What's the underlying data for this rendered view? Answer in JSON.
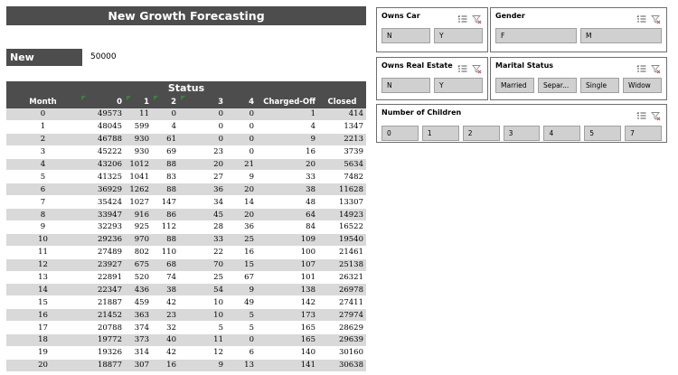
{
  "title": "New Growth Forecasting",
  "new_accounts": {
    "label": "New Accounts",
    "value": "50000"
  },
  "status_label": "Status",
  "columns": [
    "Month",
    "0",
    "1",
    "2",
    "3",
    "4",
    "Charged-Off",
    "Closed"
  ],
  "rows": [
    [
      "0",
      "49573",
      "11",
      "0",
      "0",
      "0",
      "1",
      "414"
    ],
    [
      "1",
      "48045",
      "599",
      "4",
      "0",
      "0",
      "4",
      "1347"
    ],
    [
      "2",
      "46788",
      "930",
      "61",
      "0",
      "0",
      "9",
      "2213"
    ],
    [
      "3",
      "45222",
      "930",
      "69",
      "23",
      "0",
      "16",
      "3739"
    ],
    [
      "4",
      "43206",
      "1012",
      "88",
      "20",
      "21",
      "20",
      "5634"
    ],
    [
      "5",
      "41325",
      "1041",
      "83",
      "27",
      "9",
      "33",
      "7482"
    ],
    [
      "6",
      "36929",
      "1262",
      "88",
      "36",
      "20",
      "38",
      "11628"
    ],
    [
      "7",
      "35424",
      "1027",
      "147",
      "34",
      "14",
      "48",
      "13307"
    ],
    [
      "8",
      "33947",
      "916",
      "86",
      "45",
      "20",
      "64",
      "14923"
    ],
    [
      "9",
      "32293",
      "925",
      "112",
      "28",
      "36",
      "84",
      "16522"
    ],
    [
      "10",
      "29236",
      "970",
      "88",
      "33",
      "25",
      "109",
      "19540"
    ],
    [
      "11",
      "27489",
      "802",
      "110",
      "22",
      "16",
      "100",
      "21461"
    ],
    [
      "12",
      "23927",
      "675",
      "68",
      "70",
      "15",
      "107",
      "25138"
    ],
    [
      "13",
      "22891",
      "520",
      "74",
      "25",
      "67",
      "101",
      "26321"
    ],
    [
      "14",
      "22347",
      "436",
      "38",
      "54",
      "9",
      "138",
      "26978"
    ],
    [
      "15",
      "21887",
      "459",
      "42",
      "10",
      "49",
      "142",
      "27411"
    ],
    [
      "16",
      "21452",
      "363",
      "23",
      "10",
      "5",
      "173",
      "27974"
    ],
    [
      "17",
      "20788",
      "374",
      "32",
      "5",
      "5",
      "165",
      "28629"
    ],
    [
      "18",
      "19772",
      "373",
      "40",
      "11",
      "0",
      "165",
      "29639"
    ],
    [
      "19",
      "19326",
      "314",
      "42",
      "12",
      "6",
      "140",
      "30160"
    ],
    [
      "20",
      "18877",
      "307",
      "16",
      "9",
      "13",
      "141",
      "30638"
    ]
  ],
  "slicers": {
    "owns_car": {
      "title": "Owns Car",
      "items": [
        "N",
        "Y"
      ]
    },
    "gender": {
      "title": "Gender",
      "items": [
        "F",
        "M"
      ]
    },
    "owns_real_estate": {
      "title": "Owns Real Estate",
      "items": [
        "N",
        "Y"
      ]
    },
    "marital_status": {
      "title": "Marital Status",
      "items": [
        "Married",
        "Separ...",
        "Single",
        "Widow"
      ]
    },
    "number_of_children": {
      "title": "Number of Children",
      "items": [
        "0",
        "1",
        "2",
        "3",
        "4",
        "5",
        "7"
      ]
    }
  },
  "icons": {
    "multi_select": "multi-select-icon",
    "clear_filter": "clear-filter-icon"
  }
}
